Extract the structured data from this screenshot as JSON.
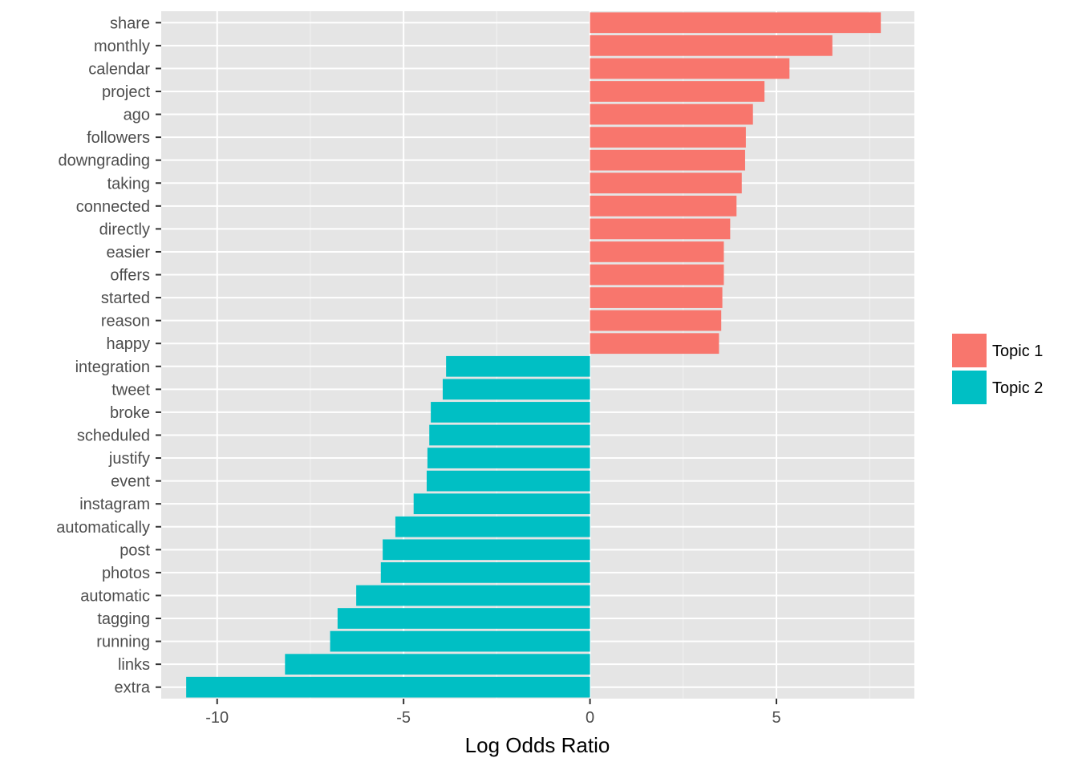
{
  "chart_data": {
    "type": "bar",
    "orientation": "horizontal",
    "title": "",
    "xlabel": "Log Odds Ratio",
    "ylabel": "",
    "xlim": [
      -11.5,
      8.7
    ],
    "xticks": [
      -10,
      -5,
      0,
      5
    ],
    "xtick_labels": [
      "-10",
      "-5",
      "0",
      "5"
    ],
    "grid": true,
    "legend_position": "right",
    "categories": [
      "share",
      "monthly",
      "calendar",
      "project",
      "ago",
      "followers",
      "downgrading",
      "taking",
      "connected",
      "directly",
      "easier",
      "offers",
      "started",
      "reason",
      "happy",
      "integration",
      "tweet",
      "broke",
      "scheduled",
      "justify",
      "event",
      "instagram",
      "automatically",
      "post",
      "photos",
      "automatic",
      "tagging",
      "running",
      "links",
      "extra"
    ],
    "values": [
      7.8,
      6.5,
      5.35,
      4.68,
      4.37,
      4.18,
      4.16,
      4.07,
      3.93,
      3.76,
      3.59,
      3.59,
      3.55,
      3.52,
      3.46,
      -3.86,
      -3.95,
      -4.27,
      -4.31,
      -4.36,
      -4.38,
      -4.73,
      -5.22,
      -5.56,
      -5.61,
      -6.27,
      -6.77,
      -6.97,
      -8.18,
      -10.83
    ],
    "groups": [
      "Topic 1",
      "Topic 1",
      "Topic 1",
      "Topic 1",
      "Topic 1",
      "Topic 1",
      "Topic 1",
      "Topic 1",
      "Topic 1",
      "Topic 1",
      "Topic 1",
      "Topic 1",
      "Topic 1",
      "Topic 1",
      "Topic 1",
      "Topic 2",
      "Topic 2",
      "Topic 2",
      "Topic 2",
      "Topic 2",
      "Topic 2",
      "Topic 2",
      "Topic 2",
      "Topic 2",
      "Topic 2",
      "Topic 2",
      "Topic 2",
      "Topic 2",
      "Topic 2",
      "Topic 2"
    ],
    "legend": [
      {
        "name": "Topic 1",
        "color": "#F8766D"
      },
      {
        "name": "Topic 2",
        "color": "#00BFC4"
      }
    ]
  }
}
